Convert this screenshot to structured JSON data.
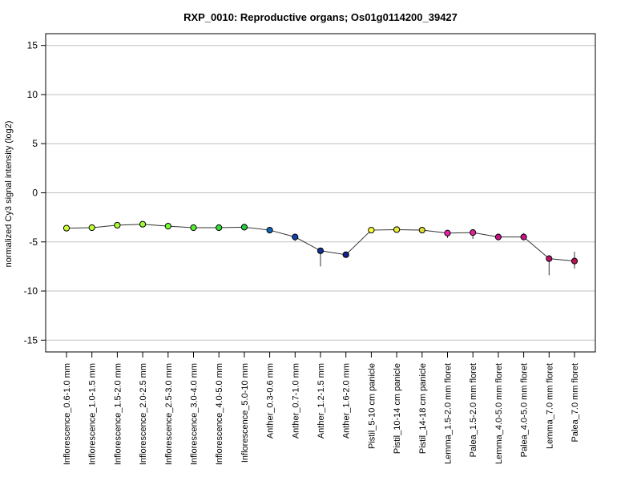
{
  "chart_data": {
    "type": "line",
    "title": "RXP_0010: Reproductive organs; Os01g0114200_39427",
    "xlabel": "",
    "ylabel": "normalized Cy3 signal intensity (log2)",
    "ylim": [
      -16.2,
      16.2
    ],
    "yticks": [
      15,
      10,
      5,
      0,
      -5,
      -10,
      -15
    ],
    "grid": true,
    "categories": [
      "Inflorescence_0.6-1.0 mm",
      "Inflorescence_1.0-1.5 mm",
      "Inflorescence_1.5-2.0 mm",
      "Inflorescence_2.0-2.5 mm",
      "Inflorescence_2.5-3.0 mm",
      "Inflorescence_3.0-4.0 mm",
      "Inflorescence_4.0-5.0 mm",
      "Inflorescence_5.0-10 mm",
      "Anther_0.3-0.6 mm",
      "Anther_0.7-1.0 mm",
      "Anther_1.2-1.5 mm",
      "Anther_1.6-2.0 mm",
      "Pistil_5-10 cm panicle",
      "Pistil_10-14 cm panicle",
      "Pistil_14-18 cm panicle",
      "Lemma_1.5-2.0 mm floret",
      "Palea_1.5-2.0 mm floret",
      "Lemma_4.0-5.0 mm floret",
      "Palea_4.0-5.0 mm floret",
      "Lemma_7.0 mm floret",
      "Palea_7.0 mm floret"
    ],
    "values": [
      -3.6,
      -3.55,
      -3.3,
      -3.2,
      -3.4,
      -3.55,
      -3.55,
      -3.5,
      -3.8,
      -4.5,
      -5.9,
      -6.3,
      -3.8,
      -3.75,
      -3.8,
      -4.1,
      -4.05,
      -4.5,
      -4.5,
      -6.7,
      -6.95
    ],
    "error_low": [
      -3.7,
      -3.65,
      -3.4,
      -3.3,
      -3.5,
      -3.65,
      -3.65,
      -3.6,
      -3.9,
      -4.9,
      -7.5,
      -6.4,
      -3.9,
      -3.85,
      -3.9,
      -4.6,
      -4.7,
      -4.8,
      -4.8,
      -8.4,
      -7.7
    ],
    "error_high": [
      -3.5,
      -3.45,
      -3.2,
      -3.1,
      -3.3,
      -3.45,
      -3.45,
      -3.4,
      -3.7,
      -4.3,
      -5.7,
      -6.2,
      -3.7,
      -3.65,
      -3.7,
      -3.8,
      -3.7,
      -4.2,
      -4.1,
      -6.4,
      -6.0
    ],
    "point_colors": [
      "#ccff33",
      "#bbff33",
      "#aaff33",
      "#99ff33",
      "#77ff33",
      "#55ee33",
      "#33dd33",
      "#22cc44",
      "#1166bb",
      "#1144aa",
      "#113399",
      "#112288",
      "#ffff33",
      "#eeee33",
      "#dddd33",
      "#ee22aa",
      "#dd2299",
      "#cc1188",
      "#cc1188",
      "#bb1166",
      "#bb1155"
    ],
    "line_color": "#333333",
    "grid_color": "#c0c0c0"
  }
}
